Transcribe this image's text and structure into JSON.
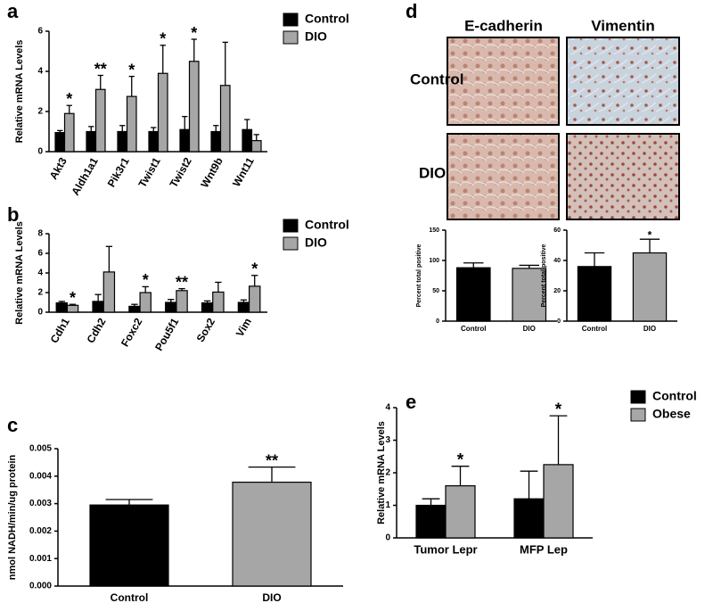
{
  "chart_data": [
    {
      "type": "bar",
      "panel": "a",
      "ylabel": "Relative mRNA Levels",
      "categories": [
        "Akt3",
        "Aldh1a1",
        "Pik3r1",
        "Twist1",
        "Twist2",
        "Wnt9b",
        "Wnt11"
      ],
      "series": [
        {
          "name": "Control",
          "color": "#000000",
          "values": [
            0.95,
            1.0,
            1.0,
            1.0,
            1.1,
            1.0,
            1.1
          ],
          "errors": [
            0.1,
            0.25,
            0.3,
            0.2,
            0.65,
            0.3,
            0.5
          ]
        },
        {
          "name": "DIO",
          "color": "#a6a6a6",
          "values": [
            1.9,
            3.1,
            2.75,
            3.9,
            4.5,
            3.3,
            0.55
          ],
          "errors": [
            0.4,
            0.7,
            1.0,
            1.4,
            1.1,
            2.15,
            0.3
          ]
        }
      ],
      "ylim": [
        0,
        6
      ],
      "yticks": [
        0,
        2,
        4,
        6
      ],
      "annotations": [
        {
          "text": "*",
          "x": "Akt3"
        },
        {
          "text": "**",
          "x": "Aldh1a1"
        },
        {
          "text": "*",
          "x": "Pik3r1"
        },
        {
          "text": "*",
          "x": "Twist1"
        },
        {
          "text": "*",
          "x": "Twist2"
        }
      ]
    },
    {
      "type": "bar",
      "panel": "b",
      "ylabel": "Relative mRNA Levels",
      "categories": [
        "Cdh1",
        "Cdh2",
        "Foxc2",
        "Pou5f1",
        "Sox2",
        "Vim"
      ],
      "series": [
        {
          "name": "Control",
          "color": "#000000",
          "values": [
            0.95,
            1.1,
            0.6,
            1.0,
            0.95,
            1.0
          ],
          "errors": [
            0.15,
            0.7,
            0.2,
            0.3,
            0.2,
            0.25
          ]
        },
        {
          "name": "DIO",
          "color": "#a6a6a6",
          "values": [
            0.7,
            4.1,
            2.0,
            2.2,
            2.05,
            2.65
          ],
          "errors": [
            0.1,
            2.6,
            0.6,
            0.2,
            1.0,
            1.1
          ]
        }
      ],
      "ylim": [
        0,
        8
      ],
      "yticks": [
        0,
        2,
        4,
        6,
        8
      ],
      "annotations": [
        {
          "text": "*",
          "x": "Cdh1"
        },
        {
          "text": "*",
          "x": "Foxc2"
        },
        {
          "text": "**",
          "x": "Pou5f1"
        },
        {
          "text": "*",
          "x": "Vim"
        }
      ]
    },
    {
      "type": "bar",
      "panel": "c",
      "ylabel": "nmol NADH/min/ug protein",
      "categories": [
        "Control",
        "DIO"
      ],
      "values": [
        0.00295,
        0.00378
      ],
      "errors": [
        0.0002,
        0.00055
      ],
      "colors": [
        "#000000",
        "#a6a6a6"
      ],
      "ylim": [
        0,
        0.005
      ],
      "yticks": [
        {
          "value": 0,
          "label": "0.000"
        },
        {
          "value": 0.001,
          "label": "0.001"
        },
        {
          "value": 0.002,
          "label": "0.002"
        },
        {
          "value": 0.003,
          "label": "0.003"
        },
        {
          "value": 0.004,
          "label": "0.004"
        },
        {
          "value": 0.005,
          "label": "0.005"
        }
      ],
      "annotations": [
        {
          "text": "**",
          "x": "DIO"
        }
      ]
    },
    {
      "type": "bar",
      "ylabel": "Percent total positive",
      "categories": [
        "Control",
        "DIO"
      ],
      "values": [
        88,
        87
      ],
      "errors": [
        8,
        5
      ],
      "colors": [
        "#000000",
        "#a6a6a6"
      ],
      "ylim": [
        0,
        150
      ],
      "yticks": [
        0,
        50,
        100,
        150
      ]
    },
    {
      "type": "bar",
      "ylabel": "Percent total positive",
      "categories": [
        "Control",
        "DIO"
      ],
      "values": [
        36,
        45
      ],
      "errors": [
        9,
        9
      ],
      "colors": [
        "#000000",
        "#a6a6a6"
      ],
      "ylim": [
        0,
        60
      ],
      "yticks": [
        0,
        20,
        40,
        60
      ],
      "annotations": [
        {
          "text": "*",
          "x": "DIO"
        }
      ]
    },
    {
      "type": "bar",
      "panel": "e",
      "ylabel": "Relative mRNA Levels",
      "categories": [
        "Tumor Lepr",
        "MFP Lep"
      ],
      "series": [
        {
          "name": "Control",
          "color": "#000000",
          "values": [
            1.0,
            1.2
          ],
          "errors": [
            0.2,
            0.85
          ]
        },
        {
          "name": "Obese",
          "color": "#a6a6a6",
          "values": [
            1.6,
            2.25
          ],
          "errors": [
            0.6,
            1.5
          ]
        }
      ],
      "ylim": [
        0,
        4
      ],
      "yticks": [
        0,
        1,
        2,
        3,
        4
      ],
      "annotations": [
        {
          "text": "*",
          "x": "Tumor Lepr"
        },
        {
          "text": "*",
          "x": "MFP Lep"
        }
      ]
    }
  ],
  "micrographs": {
    "panel": "d",
    "columns": [
      "E-cadherin",
      "Vimentin"
    ],
    "rows": [
      "Control",
      "DIO"
    ]
  }
}
